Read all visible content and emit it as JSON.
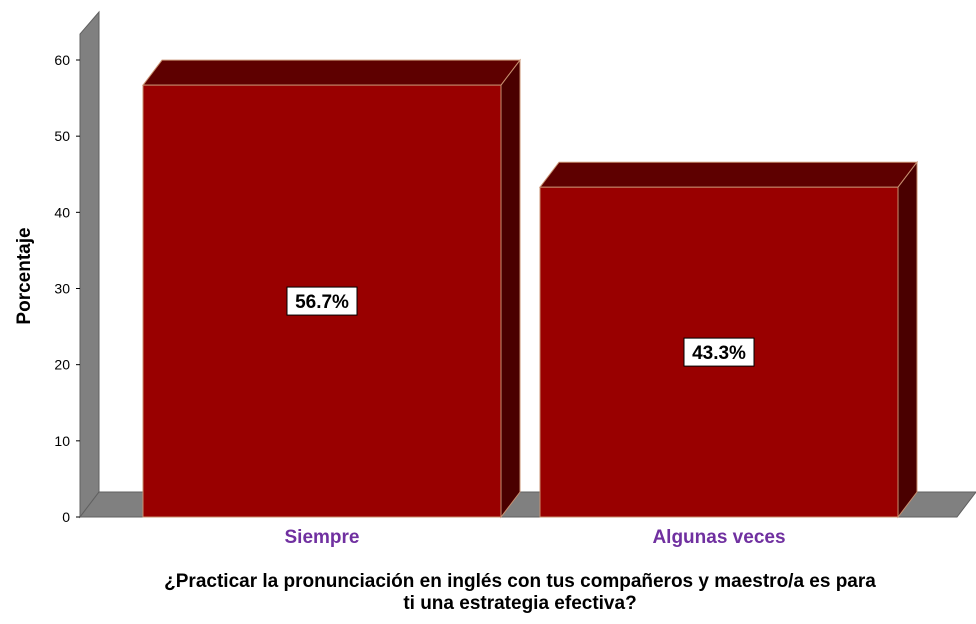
{
  "chart_data": {
    "type": "bar",
    "categories": [
      "Siempre",
      "Algunas veces"
    ],
    "values": [
      56.7,
      43.3
    ],
    "data_labels": [
      "56.7%",
      "43.3%"
    ],
    "ylabel": "Porcentaje",
    "xlabel_lines": [
      "¿Practicar la pronunciación en inglés con tus compañeros y maestro/a es para",
      "ti una estrategia efectiva?"
    ],
    "ylim": [
      0,
      60
    ],
    "yticks": [
      "0",
      "10",
      "20",
      "30",
      "40",
      "50",
      "60"
    ],
    "grid": false,
    "style": "3d",
    "colors": {
      "bar_front": "#990000",
      "bar_top": "#5e0000",
      "bar_side": "#4a0000",
      "bar_edge": "#c89070",
      "wall": "#808080",
      "category_label": "#7030a0"
    }
  }
}
